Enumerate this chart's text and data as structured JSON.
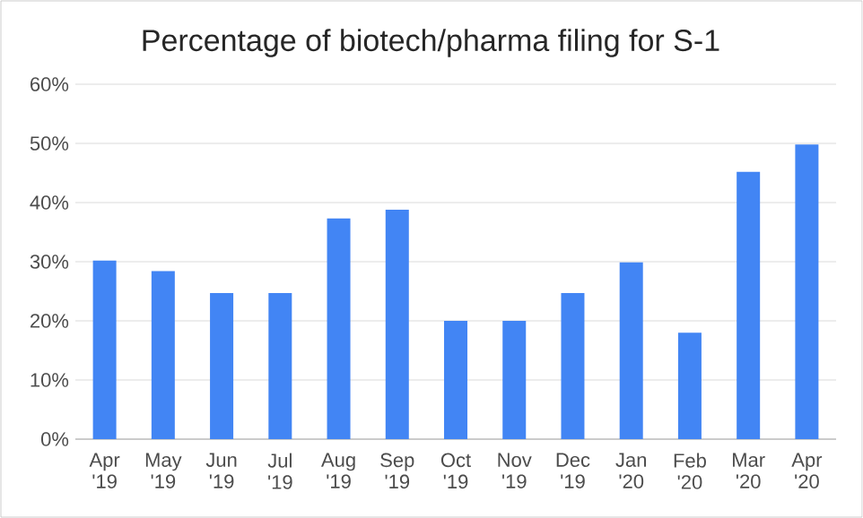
{
  "chart_data": {
    "type": "bar",
    "title": "Percentage of biotech/pharma filing for S-1",
    "categories": [
      "Apr '19",
      "May '19",
      "Jun '19",
      "Jul '19",
      "Aug '19",
      "Sep '19",
      "Oct '19",
      "Nov '19",
      "Dec '19",
      "Jan '20",
      "Feb '20",
      "Mar '20",
      "Apr '20"
    ],
    "values": [
      30.2,
      28.4,
      24.7,
      24.7,
      37.3,
      38.8,
      20,
      20,
      24.7,
      29.9,
      18,
      45.2,
      49.8
    ],
    "color": "#4285f4",
    "ylim": [
      0,
      60
    ],
    "yticks": [
      {
        "value": 0,
        "label": "0%"
      },
      {
        "value": 10,
        "label": "10%"
      },
      {
        "value": 20,
        "label": "20%"
      },
      {
        "value": 30,
        "label": "30%"
      },
      {
        "value": 40,
        "label": "40%"
      },
      {
        "value": 50,
        "label": "50%"
      },
      {
        "value": 60,
        "label": "60%"
      }
    ],
    "grid": "y"
  }
}
